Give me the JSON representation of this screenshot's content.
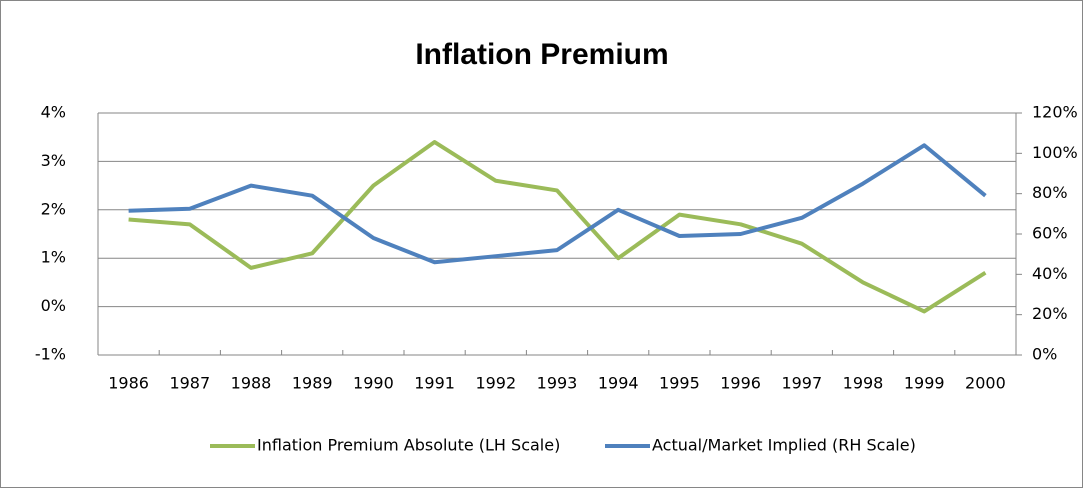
{
  "chart_data": {
    "type": "line",
    "title": "Inflation Premium",
    "categories": [
      "1986",
      "1987",
      "1988",
      "1989",
      "1990",
      "1991",
      "1992",
      "1993",
      "1994",
      "1995",
      "1996",
      "1997",
      "1998",
      "1999",
      "2000"
    ],
    "series": [
      {
        "name": "Inflation Premium Absolute (LH Scale)",
        "color": "#9bbb59",
        "axis": "y",
        "values": [
          1.8,
          1.7,
          0.8,
          1.1,
          2.5,
          3.4,
          2.6,
          2.4,
          1.0,
          1.9,
          1.7,
          1.3,
          0.5,
          -0.1,
          0.7
        ]
      },
      {
        "name": "Actual/Market Implied (RH Scale)",
        "color": "#4f81bd",
        "axis": "y2",
        "values": [
          71.5,
          72.5,
          84,
          79,
          58,
          46,
          49,
          52,
          72,
          59,
          60,
          68,
          85,
          104,
          79
        ]
      }
    ],
    "ylim": [
      -1,
      4
    ],
    "yticks": [
      {
        "value": -1,
        "label": "-1%"
      },
      {
        "value": 0,
        "label": "0%"
      },
      {
        "value": 1,
        "label": "1%"
      },
      {
        "value": 2,
        "label": "2%"
      },
      {
        "value": 3,
        "label": "3%"
      },
      {
        "value": 4,
        "label": "4%"
      }
    ],
    "y2lim": [
      0,
      120
    ],
    "y2ticks": [
      {
        "value": 0,
        "label": "0%"
      },
      {
        "value": 20,
        "label": "20%"
      },
      {
        "value": 40,
        "label": "40%"
      },
      {
        "value": 60,
        "label": "60%"
      },
      {
        "value": 80,
        "label": "80%"
      },
      {
        "value": 100,
        "label": "100%"
      },
      {
        "value": 120,
        "label": "120%"
      }
    ],
    "grid": true,
    "legend": "bottom"
  }
}
